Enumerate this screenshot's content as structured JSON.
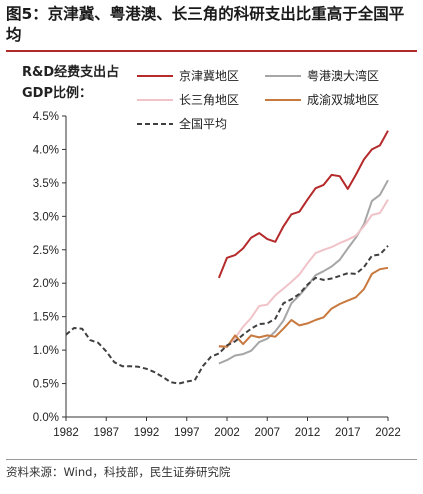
{
  "header": {
    "title": "图5：京津冀、粤港澳、长三角的科研支出比重高于全国平均"
  },
  "footer": {
    "source": "资料来源：Wind，科技部，民生证券研究院"
  },
  "chart_data": {
    "type": "line",
    "title": "图5：京津冀、粤港澳、长三角的科研支出比重高于全国平均",
    "ylabel": "R&D经费支出占GDP比例：",
    "xlabel": "",
    "xlim": [
      1982,
      2022
    ],
    "ylim": [
      0,
      4.5
    ],
    "x_ticks": [
      1982,
      1987,
      1992,
      1997,
      2002,
      2007,
      2012,
      2017,
      2022
    ],
    "y_ticks": [
      "0.0%",
      "0.5%",
      "1.0%",
      "1.5%",
      "2.0%",
      "2.5%",
      "3.0%",
      "3.5%",
      "4.0%",
      "4.5%"
    ],
    "y_tick_values": [
      0,
      0.5,
      1.0,
      1.5,
      2.0,
      2.5,
      3.0,
      3.5,
      4.0,
      4.5
    ],
    "grid": false,
    "legend_position": "top",
    "series": [
      {
        "name": "京津冀地区",
        "color": "#b52a2a",
        "dash": false,
        "x": [
          2001,
          2002,
          2003,
          2004,
          2005,
          2006,
          2007,
          2008,
          2009,
          2010,
          2011,
          2012,
          2013,
          2014,
          2015,
          2016,
          2017,
          2018,
          2019,
          2020,
          2021,
          2022
        ],
        "y": [
          2.08,
          2.38,
          2.42,
          2.52,
          2.68,
          2.75,
          2.66,
          2.62,
          2.85,
          3.03,
          3.07,
          3.25,
          3.42,
          3.47,
          3.62,
          3.6,
          3.41,
          3.62,
          3.85,
          4.0,
          4.06,
          4.28
        ]
      },
      {
        "name": "粤港澳大湾区",
        "color": "#a6a6a6",
        "dash": false,
        "x": [
          2001,
          2002,
          2003,
          2004,
          2005,
          2006,
          2007,
          2008,
          2009,
          2010,
          2011,
          2012,
          2013,
          2014,
          2015,
          2016,
          2017,
          2018,
          2019,
          2020,
          2021,
          2022
        ],
        "y": [
          0.8,
          0.85,
          0.92,
          0.94,
          0.99,
          1.12,
          1.17,
          1.28,
          1.44,
          1.7,
          1.82,
          1.96,
          2.12,
          2.18,
          2.25,
          2.35,
          2.52,
          2.68,
          2.88,
          3.23,
          3.32,
          3.54
        ]
      },
      {
        "name": "长三角地区",
        "color": "#f0c3c8",
        "dash": false,
        "x": [
          2001,
          2002,
          2003,
          2004,
          2005,
          2006,
          2007,
          2008,
          2009,
          2010,
          2011,
          2012,
          2013,
          2014,
          2015,
          2016,
          2017,
          2018,
          2019,
          2020,
          2021,
          2022
        ],
        "y": [
          1.05,
          1.05,
          1.18,
          1.35,
          1.48,
          1.66,
          1.68,
          1.82,
          1.92,
          2.02,
          2.13,
          2.3,
          2.45,
          2.5,
          2.54,
          2.6,
          2.65,
          2.71,
          2.85,
          3.02,
          3.05,
          3.25
        ]
      },
      {
        "name": "成渝双城地区",
        "color": "#c8793f",
        "dash": false,
        "x": [
          2001,
          2002,
          2003,
          2004,
          2005,
          2006,
          2007,
          2008,
          2009,
          2010,
          2011,
          2012,
          2013,
          2014,
          2015,
          2016,
          2017,
          2018,
          2019,
          2020,
          2021,
          2022
        ],
        "y": [
          1.06,
          1.05,
          1.22,
          1.09,
          1.22,
          1.19,
          1.22,
          1.2,
          1.32,
          1.45,
          1.37,
          1.4,
          1.45,
          1.49,
          1.62,
          1.69,
          1.74,
          1.79,
          1.91,
          2.14,
          2.21,
          2.23
        ]
      },
      {
        "name": "全国平均",
        "color": "#404040",
        "dash": true,
        "x": [
          1982,
          1983,
          1984,
          1985,
          1986,
          1987,
          1988,
          1989,
          1990,
          1991,
          1992,
          1993,
          1994,
          1995,
          1996,
          1997,
          1998,
          1999,
          2000,
          2001,
          2002,
          2003,
          2004,
          2005,
          2006,
          2007,
          2008,
          2009,
          2010,
          2011,
          2012,
          2013,
          2014,
          2015,
          2016,
          2017,
          2018,
          2019,
          2020,
          2021,
          2022
        ],
        "y": [
          1.23,
          1.33,
          1.32,
          1.15,
          1.11,
          0.98,
          0.82,
          0.76,
          0.76,
          0.75,
          0.72,
          0.67,
          0.6,
          0.52,
          0.5,
          0.53,
          0.55,
          0.76,
          0.9,
          0.95,
          1.07,
          1.13,
          1.23,
          1.32,
          1.39,
          1.4,
          1.47,
          1.7,
          1.76,
          1.84,
          1.98,
          2.08,
          2.05,
          2.07,
          2.11,
          2.15,
          2.14,
          2.24,
          2.41,
          2.43,
          2.56
        ]
      }
    ]
  }
}
